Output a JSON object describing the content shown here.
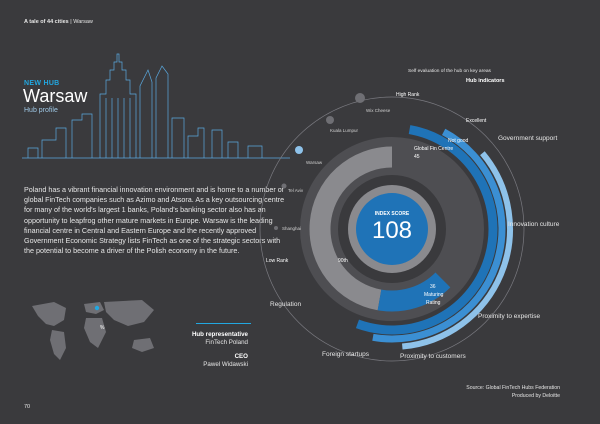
{
  "header": {
    "series_title": "A tale of 44 cities",
    "separator": "|",
    "city": "Warsaw"
  },
  "hub": {
    "kicker": "NEW HUB",
    "city": "Warsaw",
    "subtitle": "Hub profile"
  },
  "description": "Poland has a vibrant financial innovation environment and is home to a number of global FinTech companies such as Azimo and Atsora. As a key outsourcing centre for many of the world's largest 1 banks, Poland's banking sector also has an opportunity to leapfrog other mature markets in Europe. Warsaw is the leading financial centre in Central and Eastern Europe and the recently approved Government Economic Strategy lists FinTech as one of the strategic sectors with the potential to become a driver of the Polish economy in the future.",
  "map": {
    "pin_label": "%"
  },
  "people": [
    {
      "role": "Hub representative",
      "name": "FinTech Poland"
    },
    {
      "role": "CEO",
      "name": "Pawel Widawski"
    }
  ],
  "footer": {
    "source": "Source: Global FinTech Hubs Federation",
    "producer": "Produced by Deloitte",
    "page": "70"
  },
  "colors": {
    "background": "#3a3a3d",
    "accent": "#22a7e0",
    "blue_dark": "#1f73b7",
    "blue_light": "#8ec2ea",
    "grey": "#8a8a8e",
    "dark": "#4e4e52"
  },
  "chart_data": {
    "type": "radial",
    "index_label": "INDEX SCORE",
    "index_score": 108,
    "gfci_label": "Global Fin Centre",
    "gfci_value": "45",
    "other_labels": [
      "36",
      "Maturing",
      "Rating",
      "Low Rank",
      "90th"
    ],
    "indicators_title": "Hub indicators",
    "indicators_subtitle": "Self evaluation of the hub on key areas",
    "rating_levels": [
      "High Rank",
      "Excellent",
      "Not good",
      "Low Rank"
    ],
    "indicators": [
      "Government support",
      "Innovation culture",
      "Proximity to expertise",
      "Proximity to customers",
      "Foreign startups",
      "Regulation"
    ],
    "peer_cities": [
      "Wix Cheese",
      "Kuala Lumpur",
      "Warsaw",
      "Tel Aviv",
      "Shanghai"
    ]
  }
}
